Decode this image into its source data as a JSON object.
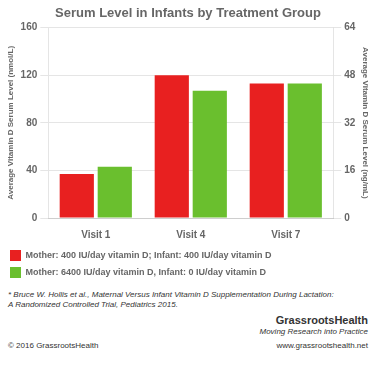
{
  "chart_data": {
    "type": "bar",
    "title": "Serum Level in Infants by Treatment Group",
    "categories": [
      "Visit 1",
      "Visit 4",
      "Visit 7"
    ],
    "series": [
      {
        "name": "Mother: 400 IU/day vitamin D; Infant: 400 IU/day vitamin D",
        "color": "#e82020",
        "values": [
          37,
          120,
          113
        ]
      },
      {
        "name": "Mother: 6400 IU/day vitamin D, Infant: 0 IU/day vitamin D",
        "color": "#6abf2e",
        "values": [
          43,
          107,
          113
        ]
      }
    ],
    "ylabel": "Average Vitamin D Serum Level (nmol/L)",
    "y2label": "Average Vitamin D Serum Level (ng/mL)",
    "ylim": [
      0,
      160
    ],
    "yticks": [
      0,
      40,
      80,
      120,
      160
    ],
    "y2lim": [
      0,
      64
    ],
    "y2ticks": [
      0,
      16,
      32,
      48,
      64
    ],
    "grid": true,
    "legend": "bottom",
    "annotations": [
      "* Bruce W. Hollis et al., Maternal Versus Infant Vitamin D Supplementation During Lactation:",
      "A Randomized Controlled Trial, Pediatrics 2015.",
      "GrassrootsHealth",
      "Moving Research into Practice",
      "© 2016 GrassrootsHealth",
      "www.grassrootshealth.net"
    ]
  }
}
